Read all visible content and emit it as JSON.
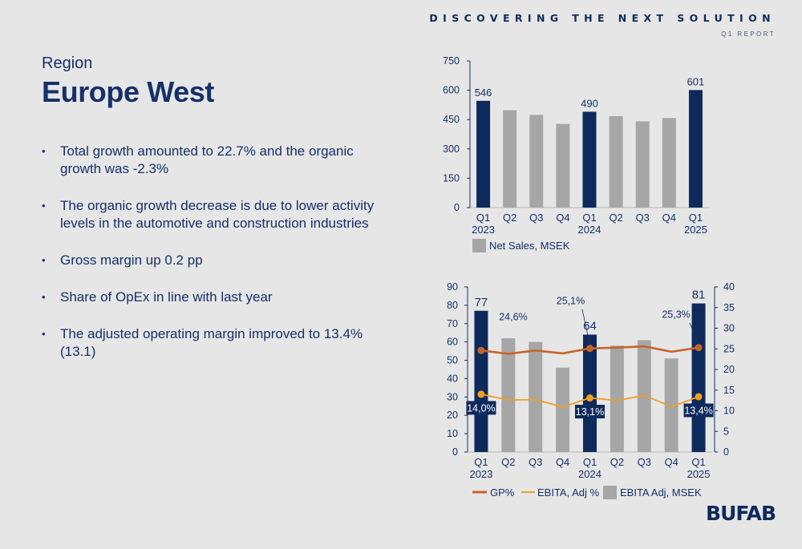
{
  "header": {
    "title": "DISCOVERING THE NEXT SOLUTION",
    "subtitle": "Q1 REPORT"
  },
  "region": {
    "label": "Region",
    "name": "Europe West"
  },
  "bullets": [
    "Total growth amounted to 22.7% and the organic growth was -2.3%",
    "The organic growth decrease is due to lower activity levels in the automotive and construction industries",
    "Gross margin up 0.2 pp",
    "Share of OpEx in line with last year",
    "The adjusted operating margin improved to 13.4% (13.1)"
  ],
  "logo": "BUFAB",
  "colors": {
    "highlight_bar": "#0e2a5c",
    "regular_bar": "#a6a6a6",
    "gp_line": "#c8642a",
    "ebita_line": "#f0a020",
    "axis_text": "#16306a"
  },
  "chart_data": [
    {
      "type": "bar",
      "categories": [
        "Q1\n2023",
        "Q2",
        "Q3",
        "Q4",
        "Q1\n2024",
        "Q2",
        "Q3",
        "Q4",
        "Q1\n2025"
      ],
      "series": [
        {
          "name": "Net Sales, MSEK",
          "values": [
            546,
            498,
            474,
            428,
            490,
            468,
            441,
            458,
            601
          ],
          "highlighted": [
            true,
            false,
            false,
            false,
            true,
            false,
            false,
            false,
            true
          ]
        }
      ],
      "data_labels": [
        {
          "index": 0,
          "text": "546"
        },
        {
          "index": 4,
          "text": "490"
        },
        {
          "index": 8,
          "text": "601"
        }
      ],
      "ylim": [
        0,
        750
      ],
      "yticks": [
        0,
        150,
        300,
        450,
        600,
        750
      ],
      "legend_position": "bottom-left",
      "grid": false
    },
    {
      "type": "bar",
      "categories": [
        "Q1\n2023",
        "Q2",
        "Q3",
        "Q4",
        "Q1\n2024",
        "Q2",
        "Q3",
        "Q4",
        "Q1\n2025"
      ],
      "series": [
        {
          "name": "EBITA Adj, MSEK",
          "axis": "left",
          "values": [
            77,
            62,
            60,
            46,
            64,
            58,
            61,
            51,
            81
          ],
          "highlighted": [
            true,
            false,
            false,
            false,
            true,
            false,
            false,
            false,
            true
          ]
        },
        {
          "name": "GP%",
          "type": "line",
          "axis": "right",
          "values": [
            24.6,
            23.8,
            24.6,
            23.9,
            25.1,
            25.3,
            25.6,
            24.3,
            25.3
          ],
          "markers": [
            0,
            4,
            8
          ]
        },
        {
          "name": "EBITA, Adj %",
          "type": "line",
          "axis": "right",
          "values": [
            14.0,
            12.6,
            12.7,
            10.9,
            13.1,
            12.5,
            13.7,
            11.0,
            13.4
          ],
          "markers": [
            0,
            4,
            8
          ]
        }
      ],
      "bar_labels": [
        {
          "index": 0,
          "text": "77"
        },
        {
          "index": 4,
          "text": "64"
        },
        {
          "index": 8,
          "text": "81"
        }
      ],
      "gp_labels": [
        {
          "index": 0,
          "text": "24,6%"
        },
        {
          "index": 4,
          "text": "25,1%"
        },
        {
          "index": 8,
          "text": "25,3%"
        }
      ],
      "ebita_labels": [
        {
          "index": 0,
          "text": "14,0%"
        },
        {
          "index": 4,
          "text": "13,1%"
        },
        {
          "index": 8,
          "text": "13,4%"
        }
      ],
      "ylim_left": [
        0,
        90
      ],
      "yticks_left": [
        0,
        10,
        20,
        30,
        40,
        50,
        60,
        70,
        80,
        90
      ],
      "ylim_right": [
        0,
        40
      ],
      "yticks_right": [
        0,
        5,
        10,
        15,
        20,
        25,
        30,
        35,
        40
      ],
      "legend_position": "bottom",
      "grid": false
    }
  ]
}
